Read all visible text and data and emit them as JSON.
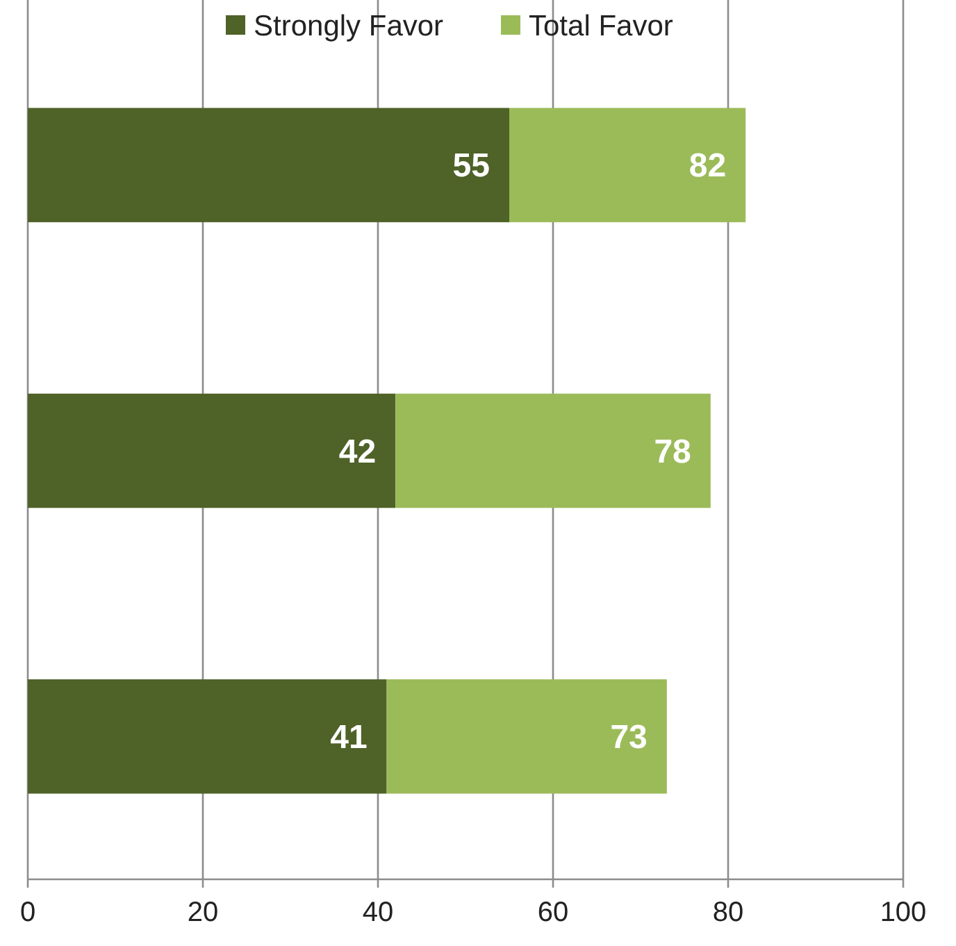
{
  "chart_data": {
    "type": "bar",
    "orientation": "horizontal",
    "stacked": true,
    "categories": [
      null,
      null,
      null
    ],
    "series": [
      {
        "name": "Strongly Favor",
        "color": "#4f6228",
        "values": [
          55,
          42,
          41
        ],
        "value_labels": [
          "55",
          "42",
          "41"
        ]
      },
      {
        "name": "Total Favor",
        "color": "#9bbb59",
        "values": [
          27,
          36,
          32
        ]
      }
    ],
    "totals": [
      "82",
      "78",
      "73"
    ],
    "xlim": [
      0,
      100
    ],
    "xticks": [
      0,
      20,
      40,
      60,
      80,
      100
    ],
    "grid": "x",
    "legend": "top"
  }
}
